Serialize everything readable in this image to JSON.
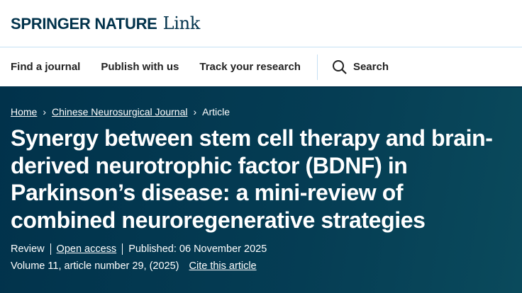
{
  "header": {
    "brand": "SPRINGER NATURE",
    "brand_suffix": "Link"
  },
  "nav": {
    "items": [
      "Find a journal",
      "Publish with us",
      "Track your research"
    ],
    "search_label": "Search"
  },
  "breadcrumb": [
    "Home",
    "Chinese Neurosurgical Journal",
    "Article"
  ],
  "article": {
    "title": "Synergy between stem cell therapy and brain-derived neurotrophic factor (BDNF) in Parkinson’s disease: a mini-review of combined neuroregenerative strategies",
    "type": "Review",
    "access": "Open access",
    "published": "Published: 06 November 2025",
    "citation": "Volume 11, article number 29, (2025)",
    "cite_link": "Cite this article"
  },
  "colors": {
    "hero": "#01324b",
    "divider": "#c5e0f4"
  }
}
